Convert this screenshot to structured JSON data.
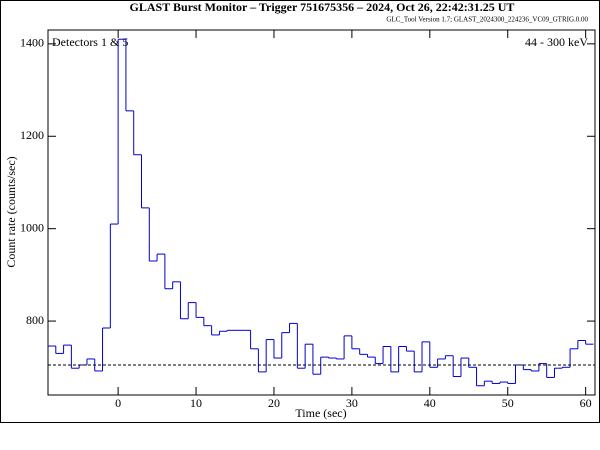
{
  "chart_data": {
    "type": "histogram",
    "title": "GLAST Burst Monitor  –  Trigger 751675356  –  2024, Oct 26, 22:42:31.25 UT",
    "subtitle": "GLC_Tool Version 1.7; GLAST_2024300_224236_VC09_GTRIG.0.00",
    "annotations": [
      "Detectors 1 & 5",
      "44 - 300 keV"
    ],
    "x_label": "Time (sec)",
    "y_label": "Count rate (counts/sec)",
    "bins": [
      -9,
      -8,
      -7,
      -6,
      -5,
      -4,
      -3,
      -2,
      -1,
      0,
      1,
      2,
      3,
      4,
      5,
      6,
      7,
      8,
      9,
      10,
      11,
      12,
      13,
      14,
      15,
      16,
      17,
      18,
      19,
      20,
      21,
      22,
      23,
      24,
      25,
      26,
      27,
      28,
      29,
      30,
      31,
      32,
      33,
      34,
      35,
      36,
      37,
      38,
      39,
      40,
      41,
      42,
      43,
      44,
      45,
      46,
      47,
      48,
      49,
      50,
      51,
      52,
      53,
      54,
      55,
      56,
      57,
      58,
      59,
      60,
      61
    ],
    "values": [
      746,
      730,
      748,
      698,
      705,
      718,
      692,
      785,
      1010,
      1410,
      1255,
      1160,
      1045,
      930,
      945,
      870,
      885,
      805,
      840,
      808,
      790,
      770,
      778,
      780,
      780,
      780,
      740,
      690,
      760,
      720,
      775,
      795,
      698,
      750,
      685,
      722,
      720,
      718,
      768,
      740,
      728,
      722,
      708,
      745,
      690,
      745,
      735,
      690,
      755,
      700,
      718,
      725,
      680,
      720,
      700,
      660,
      670,
      665,
      668,
      665,
      705,
      695,
      692,
      708,
      678,
      698,
      700,
      740,
      758,
      750
    ],
    "color": "#0000cc",
    "background_level": 705,
    "xlim": [
      -9,
      61.2
    ],
    "ylim": [
      640,
      1430
    ],
    "xticks": [
      0,
      10,
      20,
      30,
      40,
      50,
      60
    ],
    "yticks": [
      800,
      1000,
      1200,
      1400
    ]
  }
}
